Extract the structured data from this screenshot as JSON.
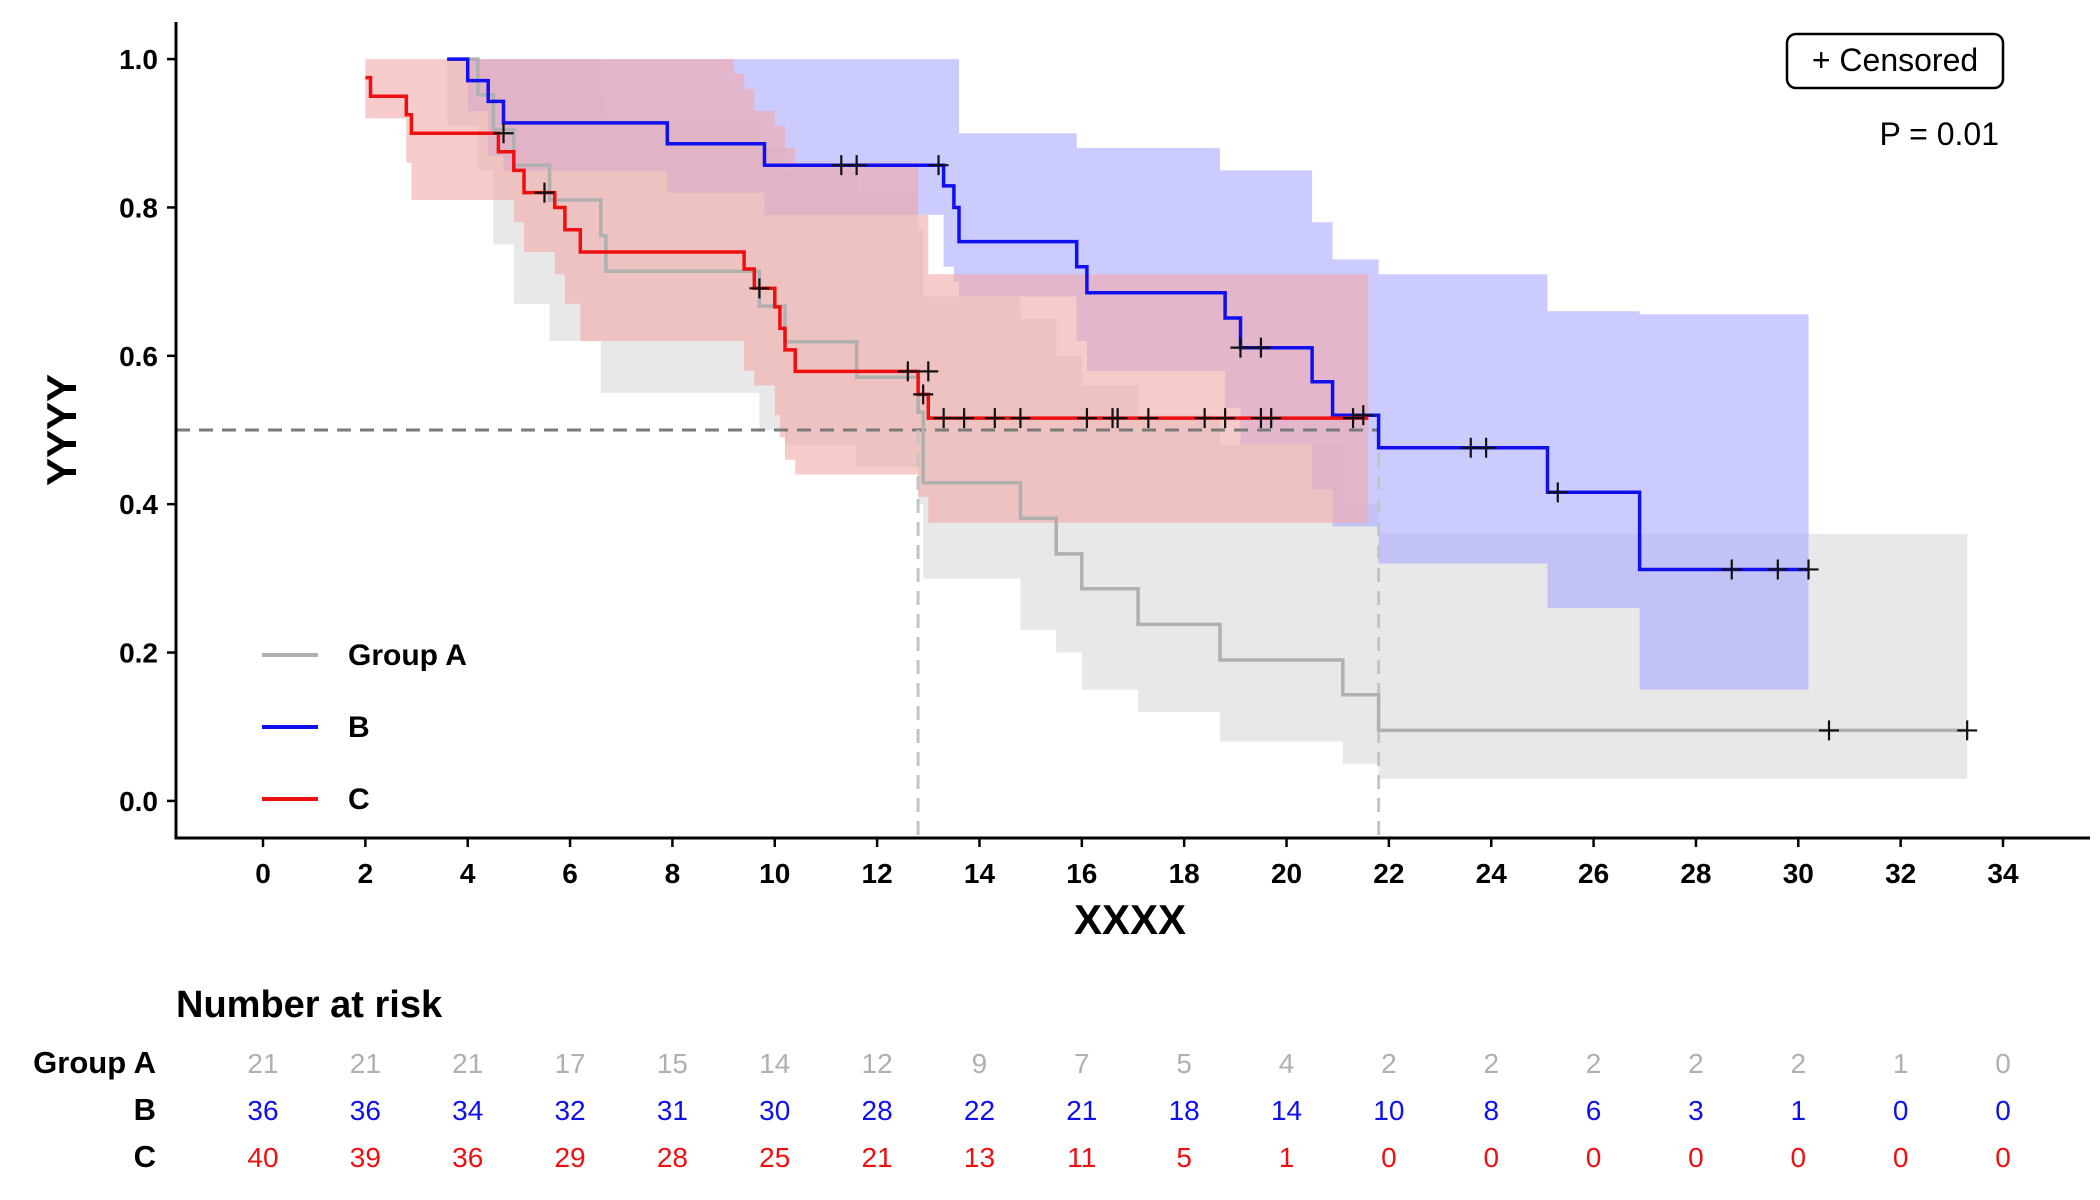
{
  "chart_data": {
    "type": "line",
    "subtype": "kaplan-meier",
    "xlabel": "XXXX",
    "ylabel": "YYYY",
    "xlim": [
      -1.7,
      35.7
    ],
    "ylim": [
      -0.05,
      1.05
    ],
    "x_ticks": [
      0,
      2,
      4,
      6,
      8,
      10,
      12,
      14,
      16,
      18,
      20,
      22,
      24,
      26,
      28,
      30,
      32,
      34
    ],
    "y_ticks": [
      0.0,
      0.2,
      0.4,
      0.6,
      0.8,
      1.0
    ],
    "y_tick_labels": [
      "0.0",
      "0.2",
      "0.4",
      "0.6",
      "0.8",
      "1.0"
    ],
    "censor_label": "+ Censored",
    "p_value_label": "P = 0.01",
    "legend_position": "bottom-left",
    "median_reference": {
      "y": 0.5,
      "x_values": [
        12.8,
        21.8
      ]
    },
    "series": [
      {
        "name": "Group A",
        "color": "#b0b0b0",
        "band_color": "#d8d8d8",
        "steps": [
          [
            3.6,
            1.0
          ],
          [
            4.2,
            0.952
          ],
          [
            4.5,
            0.905
          ],
          [
            4.9,
            0.857
          ],
          [
            5.6,
            0.81
          ],
          [
            6.6,
            0.762
          ],
          [
            6.7,
            0.714
          ],
          [
            9.7,
            0.667
          ],
          [
            10.2,
            0.619
          ],
          [
            11.6,
            0.571
          ],
          [
            12.8,
            0.524
          ],
          [
            12.9,
            0.429
          ],
          [
            14.8,
            0.381
          ],
          [
            15.5,
            0.333
          ],
          [
            16.0,
            0.286
          ],
          [
            17.1,
            0.238
          ],
          [
            18.7,
            0.19
          ],
          [
            21.1,
            0.143
          ],
          [
            21.8,
            0.095
          ],
          [
            33.3,
            0.095
          ]
        ],
        "lower": [
          [
            3.6,
            0.91
          ],
          [
            4.2,
            0.85
          ],
          [
            4.5,
            0.75
          ],
          [
            4.9,
            0.67
          ],
          [
            5.6,
            0.62
          ],
          [
            6.6,
            0.55
          ],
          [
            6.7,
            0.55
          ],
          [
            9.7,
            0.5
          ],
          [
            10.2,
            0.48
          ],
          [
            11.6,
            0.45
          ],
          [
            12.8,
            0.4
          ],
          [
            12.9,
            0.3
          ],
          [
            14.8,
            0.23
          ],
          [
            15.5,
            0.2
          ],
          [
            16.0,
            0.15
          ],
          [
            17.1,
            0.12
          ],
          [
            18.7,
            0.08
          ],
          [
            21.1,
            0.05
          ],
          [
            21.8,
            0.03
          ],
          [
            33.3,
            0.03
          ]
        ],
        "upper": [
          [
            3.6,
            1.0
          ],
          [
            4.2,
            1.0
          ],
          [
            4.5,
            1.0
          ],
          [
            4.9,
            1.0
          ],
          [
            5.6,
            1.0
          ],
          [
            6.6,
            0.95
          ],
          [
            6.7,
            0.92
          ],
          [
            9.7,
            0.88
          ],
          [
            10.2,
            0.85
          ],
          [
            11.6,
            0.82
          ],
          [
            12.8,
            0.77
          ],
          [
            12.9,
            0.68
          ],
          [
            14.8,
            0.65
          ],
          [
            15.5,
            0.6
          ],
          [
            16.0,
            0.56
          ],
          [
            17.1,
            0.52
          ],
          [
            18.7,
            0.48
          ],
          [
            21.1,
            0.4
          ],
          [
            21.8,
            0.36
          ],
          [
            33.3,
            0.36
          ]
        ],
        "censored": [
          [
            30.6,
            0.095
          ],
          [
            33.3,
            0.095
          ]
        ],
        "at_risk": [
          21,
          21,
          21,
          17,
          15,
          14,
          12,
          9,
          7,
          5,
          4,
          2,
          2,
          2,
          2,
          2,
          1,
          0
        ]
      },
      {
        "name": "B",
        "color": "#1010ee",
        "band_color": "#a8a8ff",
        "steps": [
          [
            3.6,
            1.0
          ],
          [
            4.0,
            0.971
          ],
          [
            4.4,
            0.943
          ],
          [
            4.7,
            0.914
          ],
          [
            7.9,
            0.886
          ],
          [
            9.8,
            0.857
          ],
          [
            13.3,
            0.829
          ],
          [
            13.5,
            0.8
          ],
          [
            13.6,
            0.754
          ],
          [
            15.9,
            0.72
          ],
          [
            16.1,
            0.685
          ],
          [
            18.8,
            0.651
          ],
          [
            19.1,
            0.611
          ],
          [
            20.5,
            0.565
          ],
          [
            20.9,
            0.52
          ],
          [
            21.8,
            0.476
          ],
          [
            25.1,
            0.416
          ],
          [
            26.9,
            0.312
          ],
          [
            30.2,
            0.312
          ]
        ],
        "lower": [
          [
            3.6,
            1.0
          ],
          [
            4.0,
            0.93
          ],
          [
            4.4,
            0.87
          ],
          [
            4.7,
            0.85
          ],
          [
            7.9,
            0.82
          ],
          [
            9.8,
            0.79
          ],
          [
            13.3,
            0.72
          ],
          [
            13.5,
            0.7
          ],
          [
            13.6,
            0.68
          ],
          [
            15.9,
            0.62
          ],
          [
            16.1,
            0.58
          ],
          [
            18.8,
            0.53
          ],
          [
            19.1,
            0.48
          ],
          [
            20.5,
            0.42
          ],
          [
            20.9,
            0.37
          ],
          [
            21.8,
            0.32
          ],
          [
            24.5,
            0.32
          ],
          [
            25.1,
            0.26
          ],
          [
            26.9,
            0.15
          ],
          [
            30.2,
            0.15
          ]
        ],
        "upper": [
          [
            3.6,
            1.0
          ],
          [
            13.3,
            1.0
          ],
          [
            13.6,
            0.9
          ],
          [
            15.9,
            0.88
          ],
          [
            18.7,
            0.85
          ],
          [
            20.5,
            0.78
          ],
          [
            20.9,
            0.73
          ],
          [
            21.8,
            0.71
          ],
          [
            25.1,
            0.66
          ],
          [
            26.9,
            0.656
          ],
          [
            30.2,
            0.656
          ]
        ],
        "censored": [
          [
            11.3,
            0.857
          ],
          [
            11.6,
            0.857
          ],
          [
            13.2,
            0.857
          ],
          [
            19.1,
            0.611
          ],
          [
            19.5,
            0.611
          ],
          [
            21.5,
            0.52
          ],
          [
            23.6,
            0.476
          ],
          [
            23.9,
            0.476
          ],
          [
            25.3,
            0.416
          ],
          [
            28.7,
            0.312
          ],
          [
            29.6,
            0.312
          ],
          [
            30.2,
            0.312
          ]
        ],
        "at_risk": [
          36,
          36,
          34,
          32,
          31,
          30,
          28,
          22,
          21,
          18,
          14,
          10,
          8,
          6,
          3,
          1,
          0,
          0
        ]
      },
      {
        "name": "C",
        "color": "#ee1010",
        "band_color": "#f4a8a8",
        "steps": [
          [
            2.0,
            0.975
          ],
          [
            2.1,
            0.95
          ],
          [
            2.8,
            0.925
          ],
          [
            2.9,
            0.9
          ],
          [
            4.6,
            0.875
          ],
          [
            4.9,
            0.85
          ],
          [
            5.1,
            0.82
          ],
          [
            5.7,
            0.8
          ],
          [
            5.9,
            0.77
          ],
          [
            6.2,
            0.74
          ],
          [
            9.4,
            0.717
          ],
          [
            9.6,
            0.691
          ],
          [
            10.0,
            0.666
          ],
          [
            10.1,
            0.637
          ],
          [
            10.2,
            0.608
          ],
          [
            10.4,
            0.579
          ],
          [
            12.5,
            0.579
          ],
          [
            12.8,
            0.548
          ],
          [
            13.0,
            0.516
          ],
          [
            21.6,
            0.516
          ]
        ],
        "lower": [
          [
            2.0,
            0.92
          ],
          [
            2.8,
            0.86
          ],
          [
            2.9,
            0.81
          ],
          [
            4.6,
            0.81
          ],
          [
            4.9,
            0.78
          ],
          [
            5.1,
            0.74
          ],
          [
            5.7,
            0.71
          ],
          [
            5.9,
            0.67
          ],
          [
            6.2,
            0.62
          ],
          [
            9.4,
            0.58
          ],
          [
            9.6,
            0.56
          ],
          [
            10.0,
            0.52
          ],
          [
            10.1,
            0.49
          ],
          [
            10.2,
            0.46
          ],
          [
            10.4,
            0.44
          ],
          [
            12.8,
            0.41
          ],
          [
            13.0,
            0.375
          ],
          [
            21.6,
            0.375
          ]
        ],
        "upper": [
          [
            2.0,
            1.0
          ],
          [
            9.2,
            0.98
          ],
          [
            9.4,
            0.96
          ],
          [
            9.6,
            0.93
          ],
          [
            10.0,
            0.91
          ],
          [
            10.2,
            0.88
          ],
          [
            10.4,
            0.86
          ],
          [
            12.8,
            0.79
          ],
          [
            13.0,
            0.71
          ],
          [
            21.6,
            0.71
          ]
        ],
        "censored": [
          [
            4.7,
            0.9
          ],
          [
            5.5,
            0.82
          ],
          [
            9.7,
            0.691
          ],
          [
            12.6,
            0.579
          ],
          [
            12.9,
            0.548
          ],
          [
            13.0,
            0.579
          ],
          [
            13.3,
            0.516
          ],
          [
            13.7,
            0.516
          ],
          [
            14.3,
            0.516
          ],
          [
            14.8,
            0.516
          ],
          [
            16.1,
            0.516
          ],
          [
            16.6,
            0.516
          ],
          [
            16.7,
            0.516
          ],
          [
            17.3,
            0.516
          ],
          [
            18.4,
            0.516
          ],
          [
            18.8,
            0.516
          ],
          [
            19.5,
            0.516
          ],
          [
            19.7,
            0.516
          ],
          [
            21.3,
            0.516
          ]
        ],
        "at_risk": [
          40,
          39,
          36,
          29,
          28,
          25,
          21,
          13,
          11,
          5,
          1,
          0,
          0,
          0,
          0,
          0,
          0,
          0
        ]
      }
    ],
    "risk_table": {
      "title": "Number at risk"
    }
  }
}
